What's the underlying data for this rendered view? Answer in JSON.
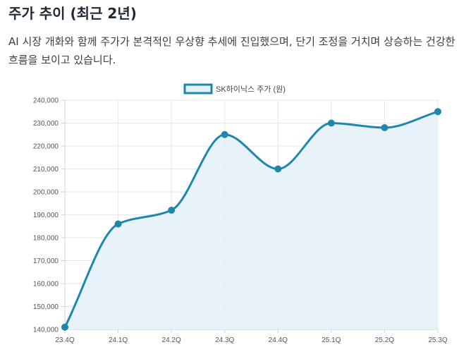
{
  "heading": {
    "title": "주가 추이 (최근 2년)",
    "description": "AI 시장 개화와 함께 주가가 본격적인 우상향 추세에 진입했으며, 단기 조정을 거치며 상승하는 건강한 흐름을 보이고 있습니다."
  },
  "colors": {
    "line": "#1f87ad",
    "fill": "#e4f1f8",
    "grid": "#e3e6ea"
  },
  "chart_data": {
    "type": "line",
    "title": "",
    "xlabel": "",
    "ylabel": "",
    "legend": "top-center",
    "grid": true,
    "categories": [
      "23.4Q",
      "24.1Q",
      "24.2Q",
      "24.3Q",
      "24.4Q",
      "25.1Q",
      "25.2Q",
      "25.3Q"
    ],
    "series": [
      {
        "name": "SK하이닉스 주가 (원)",
        "values": [
          141000,
          186000,
          192000,
          225000,
          210000,
          230000,
          228000,
          235000
        ]
      }
    ],
    "ylim": [
      140000,
      240000
    ],
    "yticks": [
      140000,
      150000,
      160000,
      170000,
      180000,
      190000,
      200000,
      210000,
      220000,
      230000,
      240000
    ]
  }
}
